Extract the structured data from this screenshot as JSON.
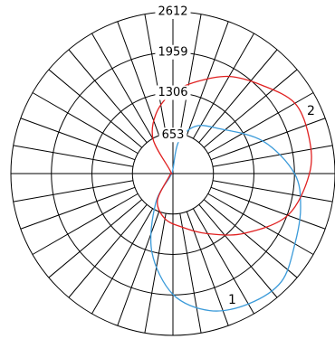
{
  "chart_data": {
    "type": "polar",
    "radial_ticks": [
      "653",
      "1306",
      "1959",
      "2612"
    ],
    "radial_tick_values": [
      653,
      1306,
      1959,
      2612
    ],
    "radial_max": 2612,
    "inner_hole_value": 653,
    "spoke_step_deg": 10,
    "grid": true,
    "series": [
      {
        "name": "1",
        "color": "#3a9ad9",
        "points": [
          {
            "angle_deg": 92,
            "r": 60
          },
          {
            "angle_deg": 80,
            "r": 520
          },
          {
            "angle_deg": 65,
            "r": 840
          },
          {
            "angle_deg": 45,
            "r": 1030
          },
          {
            "angle_deg": 20,
            "r": 1540
          },
          {
            "angle_deg": 0,
            "r": 1960
          },
          {
            "angle_deg": -15,
            "r": 2130
          },
          {
            "angle_deg": -30,
            "r": 2270
          },
          {
            "angle_deg": -45,
            "r": 2470
          },
          {
            "angle_deg": -60,
            "r": 2430
          },
          {
            "angle_deg": -75,
            "r": 2290
          },
          {
            "angle_deg": -90,
            "r": 1950
          },
          {
            "angle_deg": -105,
            "r": 1310
          },
          {
            "angle_deg": -120,
            "r": 560
          },
          {
            "angle_deg": -135,
            "r": 60
          }
        ]
      },
      {
        "name": "2",
        "color": "#e02020",
        "points": [
          {
            "angle_deg": -150,
            "r": 60
          },
          {
            "angle_deg": -120,
            "r": 500
          },
          {
            "angle_deg": -100,
            "r": 740
          },
          {
            "angle_deg": -80,
            "r": 880
          },
          {
            "angle_deg": -60,
            "r": 1120
          },
          {
            "angle_deg": -40,
            "r": 1500
          },
          {
            "angle_deg": -20,
            "r": 1970
          },
          {
            "angle_deg": 0,
            "r": 2200
          },
          {
            "angle_deg": 15,
            "r": 2270
          },
          {
            "angle_deg": 30,
            "r": 2270
          },
          {
            "angle_deg": 45,
            "r": 2020
          },
          {
            "angle_deg": 60,
            "r": 1810
          },
          {
            "angle_deg": 75,
            "r": 1540
          },
          {
            "angle_deg": 90,
            "r": 1310
          },
          {
            "angle_deg": 105,
            "r": 1020
          },
          {
            "angle_deg": 120,
            "r": 640
          },
          {
            "angle_deg": 135,
            "r": 60
          }
        ]
      }
    ]
  }
}
